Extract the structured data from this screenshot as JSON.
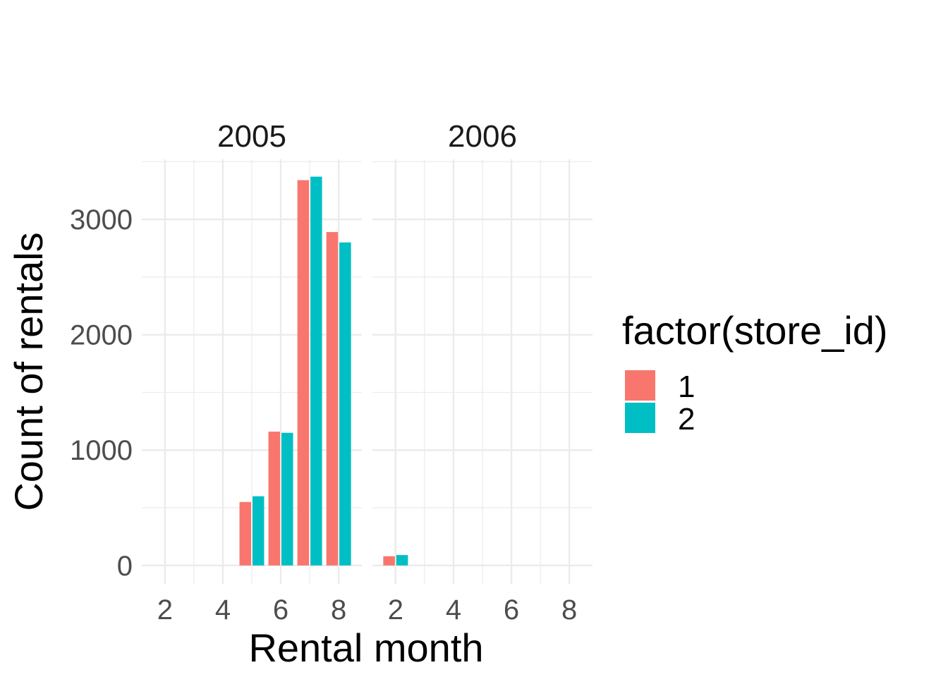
{
  "chart_data": {
    "type": "bar",
    "xlabel": "Rental month",
    "ylabel": "Count of rentals",
    "ylim": [
      -160,
      3520
    ],
    "xlim": [
      1.2,
      8.8
    ],
    "grid": true,
    "legend_position": "right",
    "legend_title": "factor(store_id)",
    "x_breaks": [
      2,
      4,
      6,
      8
    ],
    "y_breaks": [
      0,
      1000,
      2000,
      3000
    ],
    "colors": {
      "1": "#F8766D",
      "2": "#00BFC4"
    },
    "series": [
      {
        "name": "1",
        "color": "#F8766D"
      },
      {
        "name": "2",
        "color": "#00BFC4"
      }
    ],
    "facets": [
      {
        "label": "2005",
        "bars": [
          {
            "x": 5,
            "store": "1",
            "value": 550
          },
          {
            "x": 5,
            "store": "2",
            "value": 600
          },
          {
            "x": 6,
            "store": "1",
            "value": 1160
          },
          {
            "x": 6,
            "store": "2",
            "value": 1150
          },
          {
            "x": 7,
            "store": "1",
            "value": 3340
          },
          {
            "x": 7,
            "store": "2",
            "value": 3370
          },
          {
            "x": 8,
            "store": "1",
            "value": 2890
          },
          {
            "x": 8,
            "store": "2",
            "value": 2800
          }
        ]
      },
      {
        "label": "2006",
        "bars": [
          {
            "x": 2,
            "store": "1",
            "value": 80
          },
          {
            "x": 2,
            "store": "2",
            "value": 90
          }
        ]
      }
    ]
  }
}
